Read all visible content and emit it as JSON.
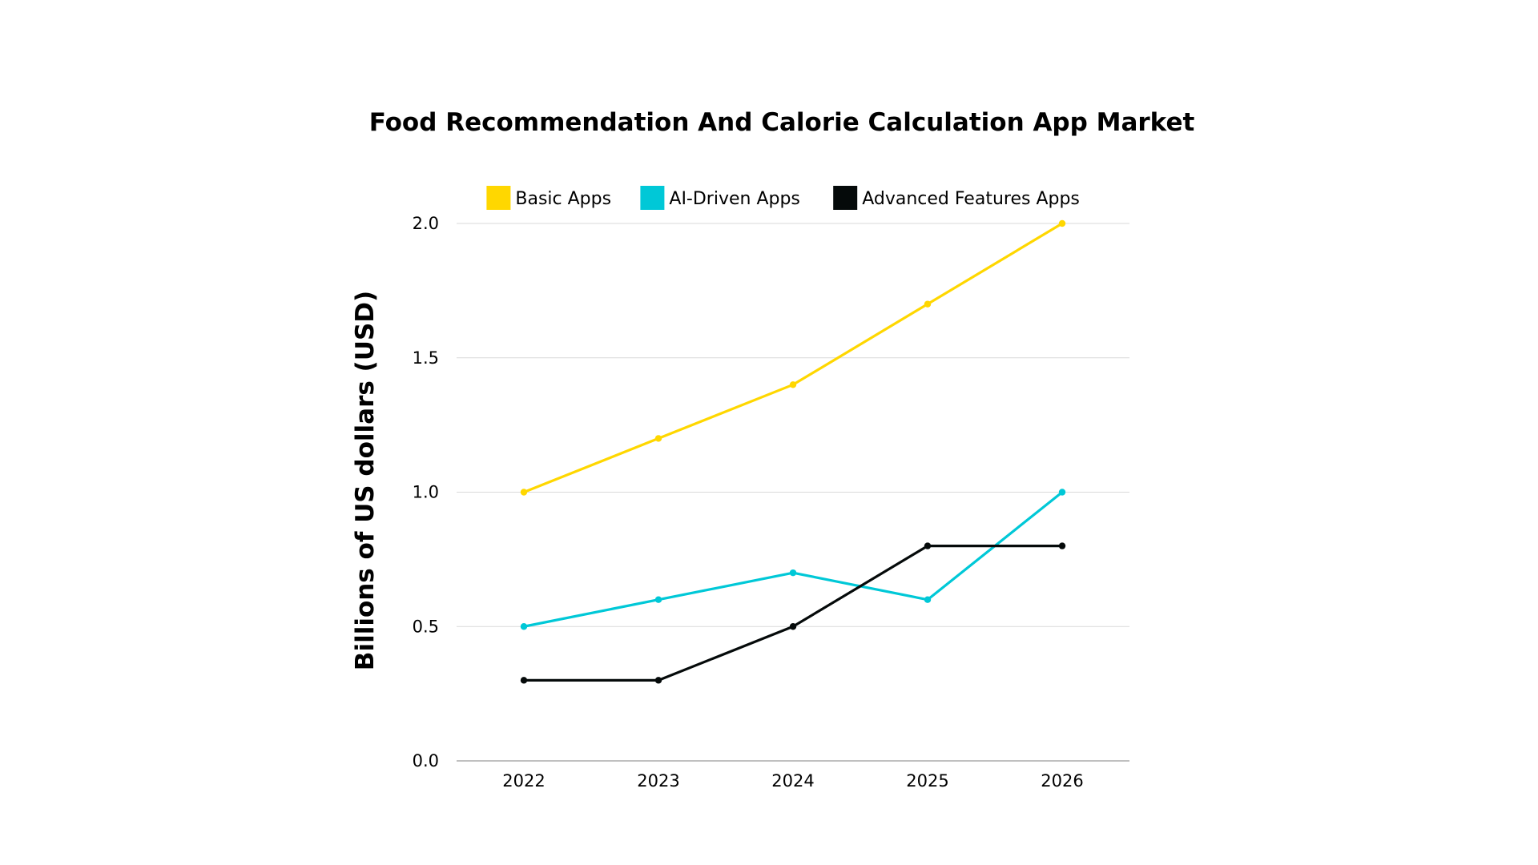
{
  "chart_data": {
    "type": "line",
    "title": "Food Recommendation And Calorie Calculation App Market",
    "ylabel": "Billions of US dollars (USD)",
    "xlabel": "",
    "categories": [
      "2022",
      "2023",
      "2024",
      "2025",
      "2026"
    ],
    "ylim": [
      0,
      2.0
    ],
    "yticks": [
      "0.0",
      "0.5",
      "1.0",
      "1.5",
      "2.0"
    ],
    "grid": true,
    "legend_position": "top",
    "series": [
      {
        "name": "Basic Apps",
        "color": "#FFD700",
        "values": [
          1.0,
          1.2,
          1.4,
          1.7,
          2.0
        ]
      },
      {
        "name": "AI-Driven Apps",
        "color": "#00C8D7",
        "values": [
          0.5,
          0.6,
          0.7,
          0.6,
          1.0
        ]
      },
      {
        "name": "Advanced Features Apps",
        "color": "#050A0A",
        "values": [
          0.3,
          0.3,
          0.5,
          0.8,
          0.8
        ]
      }
    ]
  }
}
